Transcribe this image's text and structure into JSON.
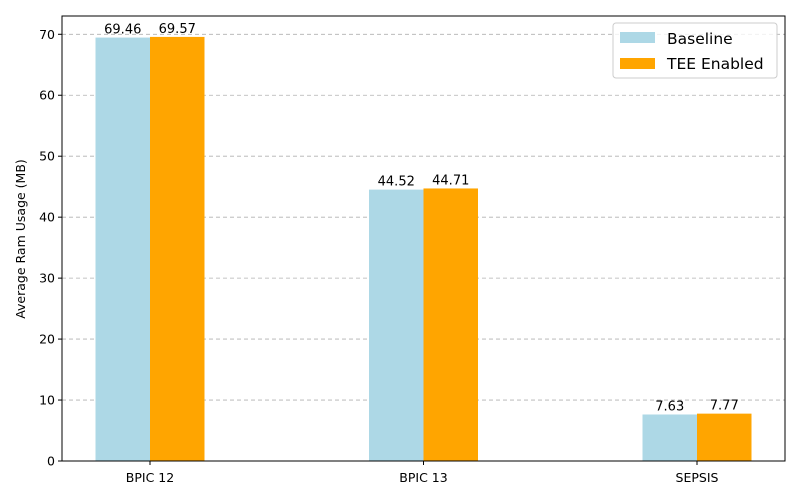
{
  "chart_data": {
    "type": "bar",
    "title": "",
    "xlabel": "",
    "ylabel": "Average Ram Usage (MB)",
    "categories": [
      "BPIC 12",
      "BPIC 13",
      "SEPSIS"
    ],
    "series": [
      {
        "name": "Baseline",
        "color": "#add8e6",
        "values": [
          69.46,
          44.52,
          7.63
        ]
      },
      {
        "name": "TEE Enabled",
        "color": "#ffa500",
        "values": [
          69.57,
          44.71,
          7.77
        ]
      }
    ],
    "data_labels": [
      [
        "69.46",
        "44.52",
        "7.63"
      ],
      [
        "69.57",
        "44.71",
        "7.77"
      ]
    ],
    "ylim": [
      0,
      73
    ],
    "yticks": [
      0,
      10,
      20,
      30,
      40,
      50,
      60,
      70
    ],
    "grid": "y-dashed",
    "legend_position": "top-right"
  }
}
